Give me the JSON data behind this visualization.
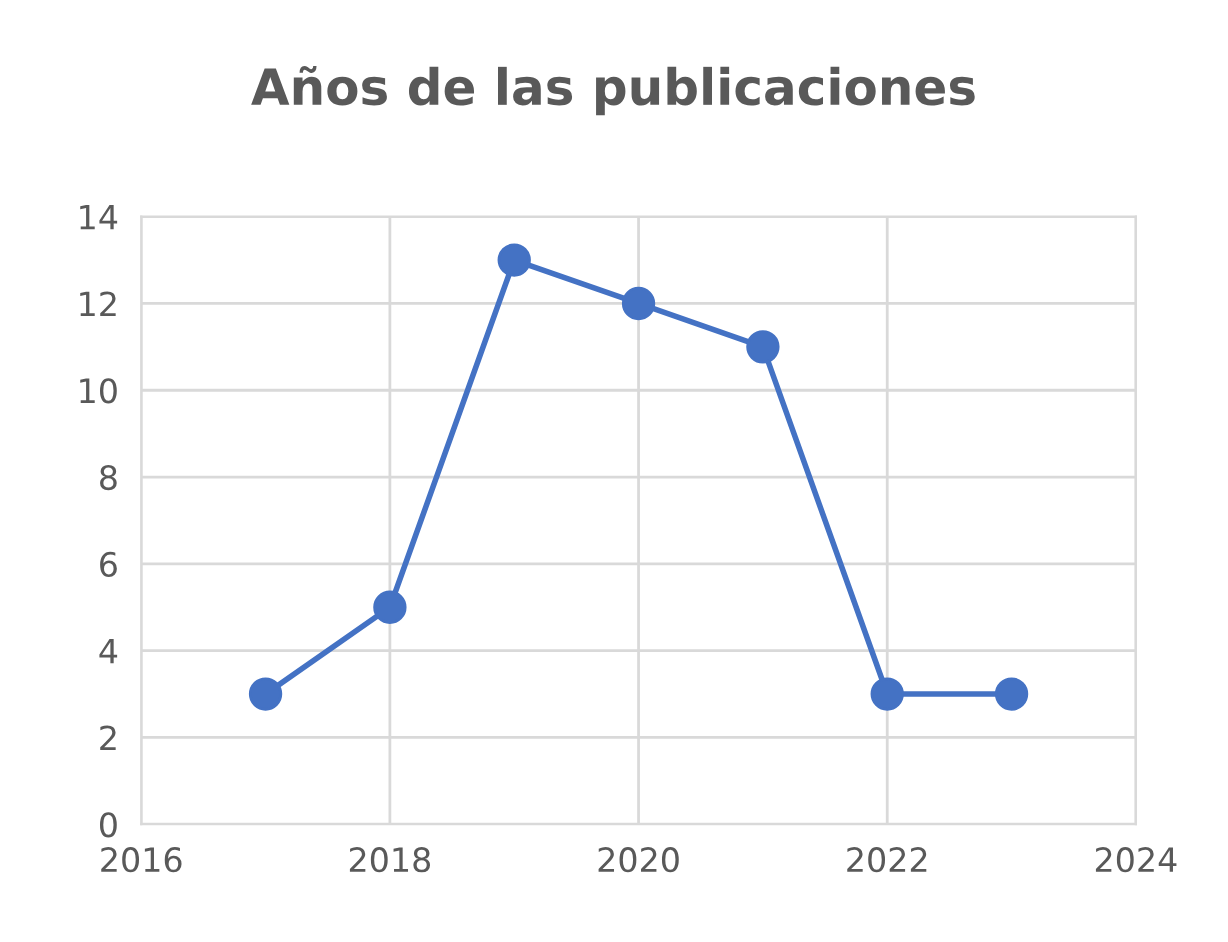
{
  "chart_data": {
    "type": "line",
    "title": "Años de las publicaciones",
    "x": [
      2017,
      2018,
      2019,
      2020,
      2021,
      2022,
      2023
    ],
    "series": [
      {
        "color": "#4472c4",
        "values": [
          3,
          5,
          13,
          12,
          11,
          3,
          3
        ]
      }
    ],
    "xlim": [
      2016,
      2024
    ],
    "xticks": [
      2016,
      2018,
      2020,
      2022,
      2024
    ],
    "ylim": [
      0,
      14
    ],
    "yticks": [
      0,
      2,
      4,
      6,
      8,
      10,
      12,
      14
    ],
    "grid": true,
    "marker": "circle",
    "line_style": "solid",
    "legend": false
  }
}
